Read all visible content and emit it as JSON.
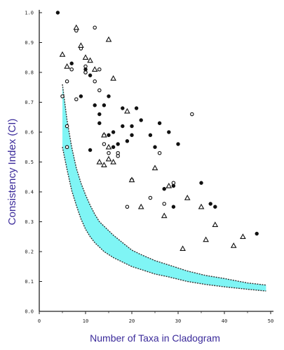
{
  "chart_data": {
    "type": "scatter",
    "title": "",
    "xlabel": "Number of Taxa in Cladogram",
    "ylabel": "Consistency Index (CI)",
    "xlim": [
      0,
      50
    ],
    "ylim": [
      0,
      1.0
    ],
    "x_ticks": [
      "0",
      "10",
      "20",
      "30",
      "40",
      "50"
    ],
    "y_ticks": [
      "0.0",
      "0.1",
      "0.2",
      "0.3",
      "0.4",
      "0.5",
      "0.6",
      "0.7",
      "0.8",
      "0.9",
      "1.0"
    ],
    "band_color": "#7ff5f5",
    "band": {
      "x": [
        5,
        6,
        7,
        8,
        9,
        10,
        11,
        12,
        13,
        14,
        16,
        18,
        20,
        22,
        25,
        28,
        32,
        36,
        40,
        45,
        49
      ],
      "upper": [
        0.76,
        0.64,
        0.55,
        0.48,
        0.43,
        0.39,
        0.355,
        0.325,
        0.3,
        0.285,
        0.255,
        0.23,
        0.205,
        0.19,
        0.17,
        0.155,
        0.135,
        0.12,
        0.11,
        0.095,
        0.088
      ],
      "lower": [
        0.55,
        0.475,
        0.405,
        0.355,
        0.31,
        0.275,
        0.25,
        0.23,
        0.215,
        0.2,
        0.18,
        0.165,
        0.15,
        0.14,
        0.125,
        0.115,
        0.1,
        0.09,
        0.082,
        0.074,
        0.068
      ]
    },
    "series": [
      {
        "marker": "circle-open",
        "points": [
          [
            5,
            0.72
          ],
          [
            6,
            0.62
          ],
          [
            6,
            0.55
          ],
          [
            8,
            0.94
          ],
          [
            9,
            0.88
          ],
          [
            10,
            0.82
          ],
          [
            10,
            0.8
          ],
          [
            12,
            0.95
          ],
          [
            12,
            0.77
          ],
          [
            13,
            0.74
          ],
          [
            14,
            0.56
          ],
          [
            15,
            0.53
          ],
          [
            17,
            0.53
          ],
          [
            17,
            0.52
          ],
          [
            19,
            0.35
          ],
          [
            20,
            0.44
          ],
          [
            24,
            0.38
          ],
          [
            26,
            0.53
          ],
          [
            27,
            0.36
          ],
          [
            29,
            0.43
          ],
          [
            33,
            0.66
          ],
          [
            8,
            0.71
          ],
          [
            13,
            0.81
          ],
          [
            7,
            0.81
          ],
          [
            10,
            0.8
          ],
          [
            6,
            0.77
          ]
        ]
      },
      {
        "marker": "circle-filled",
        "points": [
          [
            4,
            1.0
          ],
          [
            7,
            0.83
          ],
          [
            10,
            0.81
          ],
          [
            11,
            0.79
          ],
          [
            12,
            0.69
          ],
          [
            13,
            0.66
          ],
          [
            14,
            0.69
          ],
          [
            13,
            0.63
          ],
          [
            14,
            0.59
          ],
          [
            15,
            0.59
          ],
          [
            16,
            0.6
          ],
          [
            16,
            0.55
          ],
          [
            17,
            0.56
          ],
          [
            18,
            0.68
          ],
          [
            18,
            0.62
          ],
          [
            19,
            0.57
          ],
          [
            20,
            0.62
          ],
          [
            20,
            0.59
          ],
          [
            21,
            0.68
          ],
          [
            22,
            0.64
          ],
          [
            24,
            0.59
          ],
          [
            25,
            0.55
          ],
          [
            26,
            0.63
          ],
          [
            27,
            0.41
          ],
          [
            28,
            0.6
          ],
          [
            29,
            0.42
          ],
          [
            29,
            0.35
          ],
          [
            30,
            0.56
          ],
          [
            35,
            0.43
          ],
          [
            37,
            0.36
          ],
          [
            38,
            0.35
          ],
          [
            47,
            0.26
          ],
          [
            9,
            0.72
          ],
          [
            11,
            0.54
          ],
          [
            15,
            0.72
          ]
        ]
      },
      {
        "marker": "triangle-open",
        "points": [
          [
            5,
            0.86
          ],
          [
            6,
            0.82
          ],
          [
            8,
            0.95
          ],
          [
            9,
            0.89
          ],
          [
            10,
            0.85
          ],
          [
            11,
            0.84
          ],
          [
            12,
            0.81
          ],
          [
            15,
            0.91
          ],
          [
            16,
            0.78
          ],
          [
            14,
            0.59
          ],
          [
            15,
            0.55
          ],
          [
            15,
            0.51
          ],
          [
            16,
            0.5
          ],
          [
            20,
            0.44
          ],
          [
            19,
            0.67
          ],
          [
            22,
            0.35
          ],
          [
            25,
            0.48
          ],
          [
            27,
            0.32
          ],
          [
            28,
            0.42
          ],
          [
            31,
            0.21
          ],
          [
            32,
            0.38
          ],
          [
            35,
            0.35
          ],
          [
            36,
            0.24
          ],
          [
            38,
            0.29
          ],
          [
            42,
            0.22
          ],
          [
            44,
            0.25
          ],
          [
            13,
            0.5
          ],
          [
            14,
            0.49
          ]
        ]
      }
    ]
  }
}
